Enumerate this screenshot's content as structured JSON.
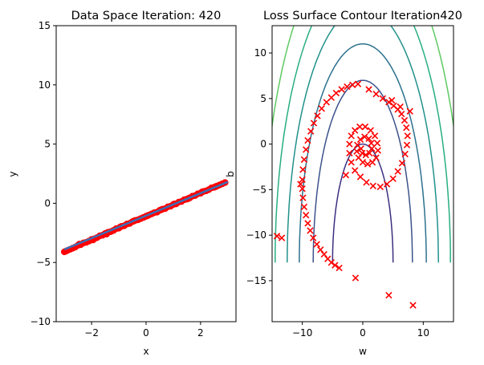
{
  "chart_data": [
    {
      "type": "scatter",
      "title": "Data Space Iteration: 420",
      "xlabel": "x",
      "ylabel": "y",
      "xlim": [
        -3.3,
        3.3
      ],
      "ylim": [
        -10,
        15
      ],
      "xticks": [
        -2,
        0,
        2
      ],
      "yticks": [
        -10,
        -5,
        0,
        5,
        10,
        15
      ],
      "colors": {
        "points": "#ff0000",
        "line": "#3d6eb6"
      },
      "fit_line": {
        "x": [
          -3.0,
          3.0
        ],
        "y": [
          -3.9,
          1.8
        ]
      },
      "series": [
        {
          "values": [
            [
              -3.0,
              -4.1
            ],
            [
              -2.9,
              -4.0
            ],
            [
              -2.8,
              -3.9
            ],
            [
              -2.7,
              -3.8
            ],
            [
              -2.6,
              -3.7
            ],
            [
              -2.5,
              -3.55
            ],
            [
              -2.4,
              -3.5
            ],
            [
              -2.3,
              -3.35
            ],
            [
              -2.2,
              -3.3
            ],
            [
              -2.1,
              -3.2
            ],
            [
              -2.0,
              -3.05
            ],
            [
              -1.9,
              -3.0
            ],
            [
              -1.8,
              -2.9
            ],
            [
              -1.7,
              -2.75
            ],
            [
              -1.6,
              -2.7
            ],
            [
              -1.5,
              -2.55
            ],
            [
              -1.4,
              -2.45
            ],
            [
              -1.3,
              -2.4
            ],
            [
              -1.2,
              -2.3
            ],
            [
              -1.1,
              -2.15
            ],
            [
              -1.0,
              -2.1
            ],
            [
              -0.9,
              -1.95
            ],
            [
              -0.8,
              -1.9
            ],
            [
              -0.7,
              -1.75
            ],
            [
              -0.6,
              -1.7
            ],
            [
              -0.5,
              -1.55
            ],
            [
              -0.4,
              -1.45
            ],
            [
              -0.3,
              -1.4
            ],
            [
              -0.2,
              -1.3
            ],
            [
              -0.1,
              -1.2
            ],
            [
              0.0,
              -1.1
            ],
            [
              0.1,
              -1.0
            ],
            [
              0.2,
              -0.9
            ],
            [
              0.3,
              -0.8
            ],
            [
              0.4,
              -0.75
            ],
            [
              0.5,
              -0.6
            ],
            [
              0.6,
              -0.5
            ],
            [
              0.7,
              -0.45
            ],
            [
              0.8,
              -0.3
            ],
            [
              0.9,
              -0.25
            ],
            [
              1.0,
              -0.1
            ],
            [
              1.1,
              -0.05
            ],
            [
              1.2,
              0.1
            ],
            [
              1.3,
              0.15
            ],
            [
              1.4,
              0.3
            ],
            [
              1.5,
              0.35
            ],
            [
              1.6,
              0.45
            ],
            [
              1.7,
              0.6
            ],
            [
              1.8,
              0.65
            ],
            [
              1.9,
              0.8
            ],
            [
              2.0,
              0.85
            ],
            [
              2.1,
              1.0
            ],
            [
              2.2,
              1.05
            ],
            [
              2.3,
              1.15
            ],
            [
              2.4,
              1.3
            ],
            [
              2.5,
              1.35
            ],
            [
              2.6,
              1.45
            ],
            [
              2.7,
              1.55
            ],
            [
              2.8,
              1.65
            ],
            [
              2.9,
              1.75
            ],
            [
              -2.95,
              -4.05
            ],
            [
              -2.45,
              -3.45
            ],
            [
              -1.95,
              -3.1
            ],
            [
              -1.45,
              -2.6
            ],
            [
              -0.95,
              -2.0
            ],
            [
              -0.45,
              -1.5
            ],
            [
              0.05,
              -1.05
            ],
            [
              0.55,
              -0.55
            ],
            [
              1.05,
              -0.05
            ],
            [
              1.55,
              0.4
            ],
            [
              2.05,
              0.95
            ],
            [
              2.55,
              1.4
            ]
          ]
        }
      ]
    },
    {
      "type": "contour",
      "title": "Loss Surface Contour Iteration420",
      "xlabel": "w",
      "ylabel": "b",
      "xlim": [
        -15,
        15
      ],
      "ylim": [
        -19.5,
        13
      ],
      "xticks": [
        -10,
        0,
        10
      ],
      "yticks": [
        -15,
        -10,
        -5,
        0,
        5,
        10
      ],
      "contour_levels": [
        {
          "color": "#3b2f80",
          "rx": 5,
          "ry": 13
        },
        {
          "color": "#3b528b",
          "rx": 8.2,
          "ry": 20
        },
        {
          "color": "#2c718e",
          "rx": 10.5,
          "ry": 24
        },
        {
          "color": "#21918c",
          "rx": 12.5,
          "ry": 28
        },
        {
          "color": "#28ae80",
          "rx": 14.5,
          "ry": 32
        },
        {
          "color": "#5ec962",
          "rx": 16.5,
          "ry": 36
        }
      ],
      "marker_color": "#ff0000",
      "series": [
        {
          "values": [
            [
              8.3,
              -17.7
            ],
            [
              4.3,
              -16.6
            ],
            [
              -1.2,
              -14.7
            ],
            [
              -14.2,
              -10.1
            ],
            [
              -13.4,
              -10.3
            ],
            [
              -3.9,
              -13.6
            ],
            [
              -4.6,
              -13.3
            ],
            [
              -5.2,
              -13.0
            ],
            [
              -5.8,
              -12.6
            ],
            [
              -6.4,
              -12.1
            ],
            [
              -7.0,
              -11.6
            ],
            [
              -7.6,
              -11.0
            ],
            [
              -8.2,
              -10.3
            ],
            [
              -8.7,
              -9.5
            ],
            [
              -9.1,
              -8.7
            ],
            [
              -9.4,
              -7.8
            ],
            [
              -9.7,
              -6.9
            ],
            [
              -9.9,
              -5.9
            ],
            [
              -10.0,
              -4.9
            ],
            [
              -10.0,
              -3.9
            ],
            [
              -9.9,
              -2.8
            ],
            [
              -9.7,
              -1.7
            ],
            [
              -9.4,
              -0.6
            ],
            [
              -9.1,
              0.4
            ],
            [
              -8.6,
              1.4
            ],
            [
              -8.1,
              2.3
            ],
            [
              -7.5,
              3.1
            ],
            [
              -6.8,
              3.9
            ],
            [
              -6.0,
              4.6
            ],
            [
              -5.2,
              5.1
            ],
            [
              -4.4,
              5.6
            ],
            [
              -3.5,
              6.0
            ],
            [
              -2.6,
              6.3
            ],
            [
              -1.7,
              6.5
            ],
            [
              -0.8,
              6.6
            ],
            [
              1.0,
              6.0
            ],
            [
              2.2,
              5.5
            ],
            [
              3.3,
              5.0
            ],
            [
              4.3,
              4.6
            ],
            [
              5.1,
              4.2
            ],
            [
              5.8,
              3.8
            ],
            [
              6.4,
              3.3
            ],
            [
              6.9,
              2.6
            ],
            [
              7.2,
              1.8
            ],
            [
              7.4,
              0.9
            ],
            [
              7.3,
              -0.1
            ],
            [
              7.0,
              -1.1
            ],
            [
              6.5,
              -2.1
            ],
            [
              5.8,
              -3.0
            ],
            [
              5.0,
              -3.8
            ],
            [
              4.0,
              -4.4
            ],
            [
              2.9,
              -4.7
            ],
            [
              1.7,
              -4.6
            ],
            [
              0.6,
              -4.2
            ],
            [
              -0.4,
              -3.6
            ],
            [
              -1.3,
              -2.9
            ],
            [
              -1.9,
              -2.0
            ],
            [
              -2.2,
              -1.0
            ],
            [
              -2.2,
              0.0
            ],
            [
              -1.9,
              0.9
            ],
            [
              -1.3,
              1.5
            ],
            [
              -0.5,
              1.9
            ],
            [
              0.4,
              1.9
            ],
            [
              1.3,
              1.5
            ],
            [
              2.0,
              0.9
            ],
            [
              2.4,
              0.1
            ],
            [
              2.5,
              -0.7
            ],
            [
              2.2,
              -1.5
            ],
            [
              1.6,
              -2.0
            ],
            [
              0.8,
              -2.2
            ],
            [
              0.0,
              -2.0
            ],
            [
              -0.7,
              -1.5
            ],
            [
              -1.0,
              -0.8
            ],
            [
              -0.9,
              -0.1
            ],
            [
              -0.4,
              0.5
            ],
            [
              0.3,
              0.8
            ],
            [
              1.0,
              0.6
            ],
            [
              1.4,
              0.1
            ],
            [
              1.5,
              -0.5
            ],
            [
              1.1,
              -1.0
            ],
            [
              0.5,
              -1.2
            ],
            [
              -0.1,
              -1.0
            ],
            [
              -0.3,
              -0.5
            ],
            [
              7.8,
              3.6
            ],
            [
              6.2,
              4.1
            ],
            [
              4.8,
              4.8
            ],
            [
              -2.8,
              -3.4
            ],
            [
              -10.3,
              -4.4
            ]
          ]
        }
      ]
    }
  ]
}
